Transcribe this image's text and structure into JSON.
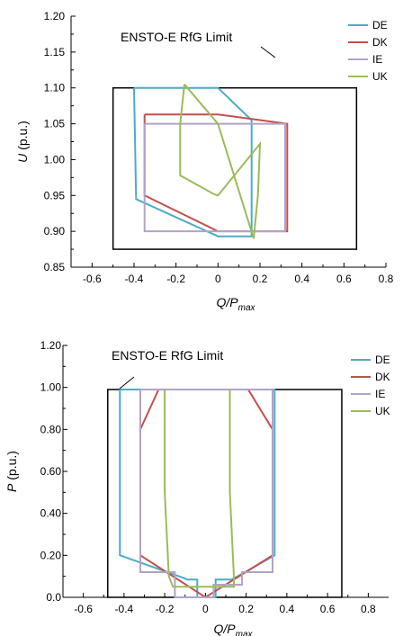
{
  "chart_data": [
    {
      "type": "line",
      "xlabel": "Q/P",
      "xlabel_sub": "max",
      "ylabel_var": "U",
      "ylabel_unit": " (p.u.)",
      "xlim": [
        -0.7,
        0.8
      ],
      "ylim": [
        0.85,
        1.2
      ],
      "xticks": [
        "-0.6",
        "-0.4",
        "-0.2",
        "0",
        "0.2",
        "0.4",
        "0.6",
        "0.8"
      ],
      "yticks": [
        "0.85",
        "0.90",
        "0.95",
        "1.00",
        "1.05",
        "1.10",
        "1.15",
        "1.20"
      ],
      "annotation": {
        "text": "ENSTO-E RfG Limit",
        "rect": {
          "x": [
            -0.5,
            0.66
          ],
          "y": [
            0.875,
            1.1
          ]
        }
      },
      "legend_position": "top-right",
      "series": [
        {
          "name": "DE",
          "color": "#4bacc6",
          "x": [
            -0.4,
            0.0,
            0.16,
            0.16,
            0.0,
            -0.39,
            -0.4
          ],
          "y": [
            1.1,
            1.1,
            1.055,
            0.893,
            0.893,
            0.945,
            1.1
          ]
        },
        {
          "name": "DK",
          "color": "#c0504d",
          "x": [
            -0.35,
            0.0,
            0.33,
            0.33,
            0.0,
            -0.35,
            -0.35
          ],
          "y": [
            1.063,
            1.063,
            1.05,
            0.9,
            0.9,
            0.95,
            1.063
          ]
        },
        {
          "name": "IE",
          "color": "#b3a2c7",
          "x": [
            -0.35,
            0.32,
            0.32,
            -0.35,
            -0.35
          ],
          "y": [
            1.05,
            1.05,
            0.9,
            0.9,
            1.05
          ]
        },
        {
          "name": "UK",
          "color": "#9bbb59",
          "x": [
            -0.16,
            -0.18,
            -0.18,
            -0.02,
            0.0,
            0.2,
            0.19,
            0.17,
            0.0,
            -0.16
          ],
          "y": [
            1.105,
            1.05,
            0.978,
            0.952,
            0.95,
            1.022,
            0.95,
            0.89,
            1.05,
            1.105
          ]
        }
      ]
    },
    {
      "type": "line",
      "xlabel": "Q/P",
      "xlabel_sub": "max",
      "ylabel_var": "P",
      "ylabel_unit": " (p.u.)",
      "xlim": [
        -0.7,
        0.9
      ],
      "ylim": [
        0.0,
        1.2
      ],
      "xticks": [
        "-0.6",
        "-0.4",
        "-0.2",
        "0",
        "0.2",
        "0.4",
        "0.6",
        "0.8"
      ],
      "yticks": [
        "0.0",
        "0.20",
        "0.40",
        "0.60",
        "0.80",
        "1.00",
        "1.20"
      ],
      "annotation": {
        "text": "ENSTO-E RfG Limit",
        "rect": {
          "x": [
            -0.48,
            0.67
          ],
          "y": [
            0.0,
            0.99
          ]
        }
      },
      "legend_position": "top-right",
      "series": [
        {
          "name": "DE",
          "color": "#4bacc6",
          "x": [
            -0.42,
            0.34,
            0.34,
            0.14,
            0.13,
            0.05,
            0.05,
            -0.04,
            -0.04,
            -0.09,
            -0.1,
            -0.42,
            -0.42
          ],
          "y": [
            0.99,
            0.99,
            0.2,
            0.09,
            0.085,
            0.085,
            0.0,
            0.0,
            0.085,
            0.085,
            0.09,
            0.2,
            0.99
          ]
        },
        {
          "name": "DK",
          "color": "#c0504d",
          "x": [
            -0.32,
            -0.23,
            0.21,
            0.33,
            0.33,
            0.0,
            -0.32,
            -0.32
          ],
          "y": [
            0.8,
            0.99,
            0.99,
            0.8,
            0.2,
            0.0,
            0.2,
            0.8
          ]
        },
        {
          "name": "IE",
          "color": "#b3a2c7",
          "x": [
            -0.32,
            0.33,
            0.33,
            0.18,
            0.18,
            0.04,
            0.04,
            -0.15,
            -0.15,
            -0.32,
            -0.32
          ],
          "y": [
            0.99,
            0.99,
            0.12,
            0.12,
            0.06,
            0.06,
            0.0,
            0.0,
            0.12,
            0.12,
            0.99
          ]
        },
        {
          "name": "UK",
          "color": "#9bbb59",
          "x": [
            -0.2,
            -0.2,
            -0.18,
            -0.16,
            0.14,
            0.14,
            0.12,
            0.12
          ],
          "y": [
            0.99,
            0.5,
            0.1,
            0.05,
            0.05,
            0.1,
            0.5,
            0.99
          ]
        }
      ]
    }
  ]
}
